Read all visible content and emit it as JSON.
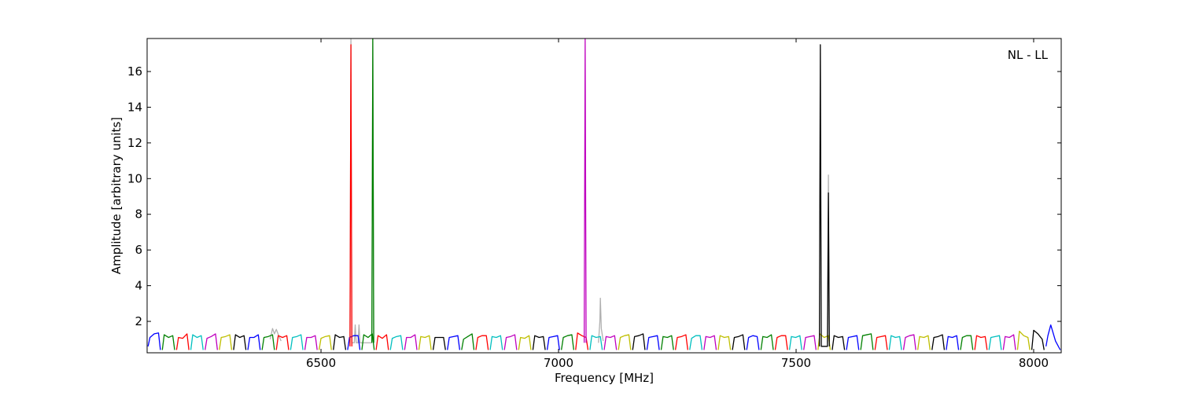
{
  "chart_data": {
    "type": "line",
    "xlabel": "Frequency [MHz]",
    "ylabel": "Amplitude [arbitrary units]",
    "annotation": "NL - LL",
    "xlim": [
      6134,
      8058
    ],
    "ylim": [
      0.24,
      17.85
    ],
    "xticks": [
      6500,
      7000,
      7500,
      8000
    ],
    "yticks": [
      2,
      4,
      6,
      8,
      10,
      12,
      14,
      16
    ],
    "series": [
      {
        "color": "#b0b0b0",
        "x": [
          6393,
          6398,
          6402,
          6406,
          6411,
          6416
        ],
        "values": [
          1.0,
          1.6,
          1.3,
          1.55,
          1.2,
          0.9
        ]
      },
      {
        "color": "#b0b0b0",
        "x": [
          6561,
          6563,
          6565,
          6570,
          6572,
          6574,
          6578,
          6580,
          6582,
          6607,
          6609,
          6611
        ],
        "values": [
          0.8,
          17.85,
          0.8,
          0.8,
          1.8,
          0.8,
          0.8,
          1.8,
          0.8,
          0.8,
          17.85,
          0.8
        ]
      },
      {
        "color": "#b0b0b0",
        "x": [
          7084,
          7087,
          7088,
          7090,
          7094
        ],
        "values": [
          0.8,
          2.0,
          3.3,
          1.6,
          0.9
        ]
      },
      {
        "color": "#b0b0b0",
        "x": [
          7566,
          7568,
          7570
        ],
        "values": [
          0.8,
          10.2,
          0.8
        ]
      },
      {
        "color": "#0000ff",
        "x": [
          6136,
          6140,
          6149,
          6158,
          6162
        ],
        "values": [
          0.6,
          1.1,
          1.3,
          1.35,
          0.4
        ]
      },
      {
        "color": "#008000",
        "x": [
          6166,
          6170,
          6179,
          6188,
          6192
        ],
        "values": [
          0.4,
          1.25,
          1.1,
          1.2,
          0.4
        ]
      },
      {
        "color": "#ff0000",
        "x": [
          6196,
          6200,
          6209,
          6218,
          6222
        ],
        "values": [
          0.4,
          1.1,
          1.05,
          1.3,
          0.4
        ]
      },
      {
        "color": "#00bfbf",
        "x": [
          6226,
          6230,
          6239,
          6248,
          6252
        ],
        "values": [
          0.4,
          1.25,
          1.1,
          1.2,
          0.4
        ]
      },
      {
        "color": "#bf00bf",
        "x": [
          6256,
          6260,
          6269,
          6278,
          6282
        ],
        "values": [
          0.4,
          1.05,
          1.15,
          1.3,
          0.4
        ]
      },
      {
        "color": "#bfbf00",
        "x": [
          6286,
          6290,
          6299,
          6308,
          6312
        ],
        "values": [
          0.4,
          1.1,
          1.15,
          1.25,
          0.4
        ]
      },
      {
        "color": "#000000",
        "x": [
          6316,
          6320,
          6329,
          6338,
          6342
        ],
        "values": [
          0.4,
          1.25,
          1.1,
          1.2,
          0.4
        ]
      },
      {
        "color": "#0000ff",
        "x": [
          6346,
          6350,
          6359,
          6368,
          6372
        ],
        "values": [
          0.4,
          1.1,
          1.1,
          1.25,
          0.4
        ]
      },
      {
        "color": "#008000",
        "x": [
          6376,
          6380,
          6389,
          6398,
          6402
        ],
        "values": [
          0.4,
          1.1,
          1.15,
          1.25,
          0.4
        ]
      },
      {
        "color": "#ff0000",
        "x": [
          6406,
          6410,
          6419,
          6428,
          6432
        ],
        "values": [
          0.4,
          1.2,
          1.1,
          1.2,
          0.4
        ]
      },
      {
        "color": "#00bfbf",
        "x": [
          6436,
          6440,
          6449,
          6458,
          6462
        ],
        "values": [
          0.4,
          1.1,
          1.15,
          1.25,
          0.4
        ]
      },
      {
        "color": "#bf00bf",
        "x": [
          6466,
          6470,
          6479,
          6488,
          6492
        ],
        "values": [
          0.4,
          1.1,
          1.1,
          1.2,
          0.4
        ]
      },
      {
        "color": "#bfbf00",
        "x": [
          6496,
          6500,
          6509,
          6518,
          6522
        ],
        "values": [
          0.4,
          1.05,
          1.15,
          1.2,
          0.4
        ]
      },
      {
        "color": "#000000",
        "x": [
          6526,
          6530,
          6539,
          6548,
          6552
        ],
        "values": [
          0.4,
          1.25,
          1.1,
          1.15,
          0.4
        ]
      },
      {
        "color": "#0000ff",
        "x": [
          6556,
          6560,
          6569,
          6578,
          6582
        ],
        "values": [
          0.4,
          1.1,
          1.2,
          1.2,
          0.4
        ]
      },
      {
        "color": "#008000",
        "x": [
          6586,
          6590,
          6599,
          6608,
          6612
        ],
        "values": [
          0.4,
          1.25,
          1.1,
          1.3,
          0.4
        ]
      },
      {
        "color": "#ff0000",
        "x": [
          6616,
          6620,
          6629,
          6638,
          6642
        ],
        "values": [
          0.4,
          1.2,
          1.05,
          1.25,
          0.4
        ]
      },
      {
        "color": "#00bfbf",
        "x": [
          6646,
          6650,
          6659,
          6668,
          6672
        ],
        "values": [
          0.4,
          1.05,
          1.15,
          1.2,
          0.4
        ]
      },
      {
        "color": "#bf00bf",
        "x": [
          6676,
          6680,
          6689,
          6698,
          6702
        ],
        "values": [
          0.4,
          1.1,
          1.1,
          1.25,
          0.4
        ]
      },
      {
        "color": "#bfbf00",
        "x": [
          6706,
          6710,
          6719,
          6728,
          6732
        ],
        "values": [
          0.4,
          1.15,
          1.1,
          1.2,
          0.4
        ]
      },
      {
        "color": "#000000",
        "x": [
          6736,
          6740,
          6749,
          6758,
          6762
        ],
        "values": [
          0.4,
          1.1,
          1.1,
          1.1,
          0.4
        ]
      },
      {
        "color": "#0000ff",
        "x": [
          6766,
          6770,
          6779,
          6788,
          6792
        ],
        "values": [
          0.4,
          1.1,
          1.15,
          1.2,
          0.4
        ]
      },
      {
        "color": "#008000",
        "x": [
          6796,
          6800,
          6809,
          6818,
          6822
        ],
        "values": [
          0.4,
          1.0,
          1.15,
          1.3,
          0.4
        ]
      },
      {
        "color": "#ff0000",
        "x": [
          6826,
          6830,
          6839,
          6848,
          6852
        ],
        "values": [
          0.4,
          1.1,
          1.2,
          1.2,
          0.4
        ]
      },
      {
        "color": "#00bfbf",
        "x": [
          6856,
          6860,
          6869,
          6878,
          6882
        ],
        "values": [
          0.4,
          1.15,
          1.1,
          1.2,
          0.4
        ]
      },
      {
        "color": "#bf00bf",
        "x": [
          6886,
          6890,
          6899,
          6908,
          6912
        ],
        "values": [
          0.4,
          1.1,
          1.15,
          1.25,
          0.4
        ]
      },
      {
        "color": "#bfbf00",
        "x": [
          6916,
          6920,
          6929,
          6938,
          6942
        ],
        "values": [
          0.4,
          1.1,
          1.05,
          1.2,
          0.4
        ]
      },
      {
        "color": "#000000",
        "x": [
          6946,
          6950,
          6959,
          6968,
          6972
        ],
        "values": [
          0.4,
          1.2,
          1.1,
          1.15,
          0.4
        ]
      },
      {
        "color": "#0000ff",
        "x": [
          6976,
          6980,
          6989,
          6998,
          7002
        ],
        "values": [
          0.4,
          1.1,
          1.15,
          1.2,
          0.4
        ]
      },
      {
        "color": "#008000",
        "x": [
          7006,
          7010,
          7019,
          7028,
          7032
        ],
        "values": [
          0.4,
          1.1,
          1.2,
          1.25,
          0.4
        ]
      },
      {
        "color": "#ff0000",
        "x": [
          7036,
          7040,
          7049,
          7058,
          7062
        ],
        "values": [
          0.4,
          1.35,
          1.2,
          1.1,
          0.4
        ]
      },
      {
        "color": "#00bfbf",
        "x": [
          7066,
          7070,
          7079,
          7088,
          7092
        ],
        "values": [
          0.4,
          1.2,
          1.1,
          1.15,
          0.4
        ]
      },
      {
        "color": "#bf00bf",
        "x": [
          7096,
          7100,
          7109,
          7118,
          7122
        ],
        "values": [
          0.4,
          1.15,
          1.1,
          1.2,
          0.4
        ]
      },
      {
        "color": "#bfbf00",
        "x": [
          7126,
          7130,
          7139,
          7148,
          7152
        ],
        "values": [
          0.4,
          1.1,
          1.2,
          1.25,
          0.4
        ]
      },
      {
        "color": "#000000",
        "x": [
          7156,
          7160,
          7169,
          7178,
          7182
        ],
        "values": [
          0.4,
          1.15,
          1.2,
          1.3,
          0.4
        ]
      },
      {
        "color": "#0000ff",
        "x": [
          7186,
          7190,
          7199,
          7208,
          7212
        ],
        "values": [
          0.4,
          1.1,
          1.15,
          1.2,
          0.4
        ]
      },
      {
        "color": "#008000",
        "x": [
          7216,
          7220,
          7229,
          7238,
          7242
        ],
        "values": [
          0.4,
          1.15,
          1.1,
          1.2,
          0.4
        ]
      },
      {
        "color": "#ff0000",
        "x": [
          7246,
          7250,
          7259,
          7268,
          7272
        ],
        "values": [
          0.4,
          1.1,
          1.15,
          1.25,
          0.4
        ]
      },
      {
        "color": "#00bfbf",
        "x": [
          7276,
          7280,
          7289,
          7298,
          7302
        ],
        "values": [
          0.4,
          1.05,
          1.2,
          1.2,
          0.4
        ]
      },
      {
        "color": "#bf00bf",
        "x": [
          7306,
          7310,
          7319,
          7328,
          7332
        ],
        "values": [
          0.4,
          1.15,
          1.1,
          1.2,
          0.4
        ]
      },
      {
        "color": "#bfbf00",
        "x": [
          7336,
          7340,
          7349,
          7358,
          7362
        ],
        "values": [
          0.4,
          1.2,
          1.1,
          1.15,
          0.4
        ]
      },
      {
        "color": "#000000",
        "x": [
          7366,
          7370,
          7379,
          7388,
          7392
        ],
        "values": [
          0.4,
          1.1,
          1.15,
          1.25,
          0.4
        ]
      },
      {
        "color": "#0000ff",
        "x": [
          7396,
          7400,
          7409,
          7418,
          7422
        ],
        "values": [
          0.4,
          1.1,
          1.2,
          1.15,
          0.4
        ]
      },
      {
        "color": "#008000",
        "x": [
          7426,
          7430,
          7439,
          7448,
          7452
        ],
        "values": [
          0.4,
          1.15,
          1.1,
          1.25,
          0.4
        ]
      },
      {
        "color": "#ff0000",
        "x": [
          7456,
          7460,
          7469,
          7478,
          7482
        ],
        "values": [
          0.4,
          1.1,
          1.2,
          1.2,
          0.4
        ]
      },
      {
        "color": "#00bfbf",
        "x": [
          7486,
          7490,
          7499,
          7508,
          7512
        ],
        "values": [
          0.4,
          1.15,
          1.1,
          1.2,
          0.4
        ]
      },
      {
        "color": "#bf00bf",
        "x": [
          7516,
          7520,
          7529,
          7538,
          7542
        ],
        "values": [
          0.4,
          1.1,
          1.15,
          1.2,
          0.4
        ]
      },
      {
        "color": "#bfbf00",
        "x": [
          7546,
          7550,
          7559,
          7568,
          7572
        ],
        "values": [
          0.4,
          1.3,
          1.1,
          1.2,
          0.4
        ]
      },
      {
        "color": "#000000",
        "x": [
          7576,
          7580,
          7589,
          7598,
          7602
        ],
        "values": [
          0.4,
          1.2,
          1.1,
          1.15,
          0.4
        ]
      },
      {
        "color": "#0000ff",
        "x": [
          7606,
          7610,
          7619,
          7628,
          7632
        ],
        "values": [
          0.4,
          1.1,
          1.15,
          1.2,
          0.4
        ]
      },
      {
        "color": "#008000",
        "x": [
          7636,
          7640,
          7649,
          7658,
          7662
        ],
        "values": [
          0.4,
          1.2,
          1.25,
          1.3,
          0.4
        ]
      },
      {
        "color": "#ff0000",
        "x": [
          7666,
          7670,
          7679,
          7688,
          7692
        ],
        "values": [
          0.4,
          1.1,
          1.15,
          1.2,
          0.4
        ]
      },
      {
        "color": "#00bfbf",
        "x": [
          7696,
          7700,
          7709,
          7718,
          7722
        ],
        "values": [
          0.4,
          1.2,
          1.1,
          1.15,
          0.4
        ]
      },
      {
        "color": "#bf00bf",
        "x": [
          7726,
          7730,
          7739,
          7748,
          7752
        ],
        "values": [
          0.4,
          1.1,
          1.2,
          1.25,
          0.4
        ]
      },
      {
        "color": "#bfbf00",
        "x": [
          7756,
          7760,
          7769,
          7778,
          7782
        ],
        "values": [
          0.4,
          1.15,
          1.1,
          1.2,
          0.4
        ]
      },
      {
        "color": "#000000",
        "x": [
          7786,
          7790,
          7799,
          7808,
          7812
        ],
        "values": [
          0.4,
          1.1,
          1.15,
          1.25,
          0.4
        ]
      },
      {
        "color": "#0000ff",
        "x": [
          7816,
          7820,
          7829,
          7838,
          7842
        ],
        "values": [
          0.4,
          1.15,
          1.1,
          1.2,
          0.4
        ]
      },
      {
        "color": "#008000",
        "x": [
          7846,
          7850,
          7859,
          7868,
          7872
        ],
        "values": [
          0.4,
          1.1,
          1.2,
          1.2,
          0.4
        ]
      },
      {
        "color": "#ff0000",
        "x": [
          7876,
          7880,
          7889,
          7898,
          7902
        ],
        "values": [
          0.4,
          1.2,
          1.1,
          1.15,
          0.4
        ]
      },
      {
        "color": "#00bfbf",
        "x": [
          7906,
          7910,
          7919,
          7928,
          7932
        ],
        "values": [
          0.4,
          1.1,
          1.15,
          1.2,
          0.4
        ]
      },
      {
        "color": "#bf00bf",
        "x": [
          7936,
          7940,
          7949,
          7958,
          7962
        ],
        "values": [
          0.4,
          1.15,
          1.1,
          1.25,
          0.4
        ]
      },
      {
        "color": "#bfbf00",
        "x": [
          7966,
          7970,
          7979,
          7988,
          7992
        ],
        "values": [
          0.4,
          1.45,
          1.2,
          1.1,
          0.4
        ]
      },
      {
        "color": "#000000",
        "x": [
          7996,
          8000,
          8009,
          8018,
          8022
        ],
        "values": [
          0.4,
          1.5,
          1.3,
          1.0,
          0.4
        ]
      },
      {
        "color": "#0000ff",
        "x": [
          8026,
          8030,
          8036,
          8046,
          8056
        ],
        "values": [
          0.6,
          1.2,
          1.8,
          0.9,
          0.4
        ]
      },
      {
        "color": "#ff0000",
        "x": [
          6561,
          6563,
          6565
        ],
        "values": [
          0.6,
          17.5,
          0.6
        ]
      },
      {
        "color": "#008000",
        "x": [
          6607,
          6609,
          6611
        ],
        "values": [
          0.8,
          17.85,
          0.8
        ]
      },
      {
        "color": "#bf00bf",
        "x": [
          7054,
          7056,
          7058
        ],
        "values": [
          0.8,
          17.85,
          0.8
        ]
      },
      {
        "color": "#000000",
        "x": [
          7549,
          7551,
          7553,
          7566,
          7568,
          7570
        ],
        "values": [
          0.6,
          17.5,
          0.6,
          0.6,
          9.2,
          0.6
        ]
      }
    ]
  }
}
